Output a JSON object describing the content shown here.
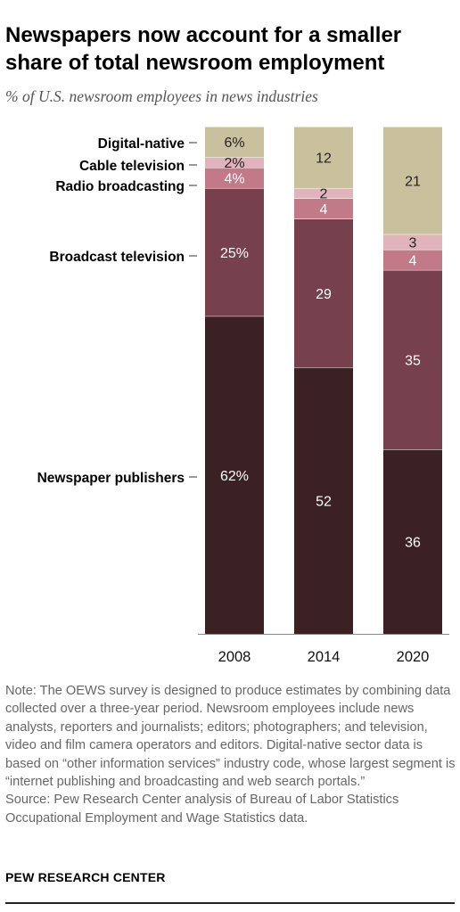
{
  "title": "Newspapers now account for a smaller share of total newsroom employment",
  "subtitle": "% of U.S. newsroom employees in news industries",
  "note": "Note: The OEWS survey is designed to produce estimates by combining data collected over a three-year period. Newsroom employees include news analysts, reporters and journalists; editors; photographers; and television, video and film camera operators and editors. Digital-native sector data is based on “other information services” industry code, whose largest segment is “internet publishing and broadcasting and web search portals.”",
  "source": "Source: Pew Research Center analysis of Bureau of Labor Statistics Occupational Employment and Wage Statistics data.",
  "brand": "PEW RESEARCH CENTER",
  "chart_data": {
    "type": "bar",
    "stacked": true,
    "categories": [
      "2008",
      "2014",
      "2020"
    ],
    "series": [
      {
        "name": "Newspaper publishers",
        "values": [
          62,
          52,
          36
        ],
        "labels": [
          "62%",
          "52",
          "36"
        ],
        "color": "#3b2024",
        "label_color": "#ffffff"
      },
      {
        "name": "Broadcast television",
        "values": [
          25,
          29,
          35
        ],
        "labels": [
          "25%",
          "29",
          "35"
        ],
        "color": "#76404c",
        "label_color": "#ffffff"
      },
      {
        "name": "Radio broadcasting",
        "values": [
          4,
          4,
          4
        ],
        "labels": [
          "4%",
          "4",
          "4"
        ],
        "color": "#c27a88",
        "label_color": "#ffffff"
      },
      {
        "name": "Cable television",
        "values": [
          2,
          2,
          3
        ],
        "labels": [
          "2%",
          "2",
          "3"
        ],
        "color": "#e1b3bc",
        "label_color": "#222222"
      },
      {
        "name": "Digital-native",
        "values": [
          6,
          12,
          21
        ],
        "labels": [
          "6%",
          "12",
          "21"
        ],
        "color": "#c9c09e",
        "label_color": "#222222"
      }
    ],
    "ylim": [
      0,
      99
    ],
    "legend": "left, labeled on first bar",
    "grid": false
  }
}
